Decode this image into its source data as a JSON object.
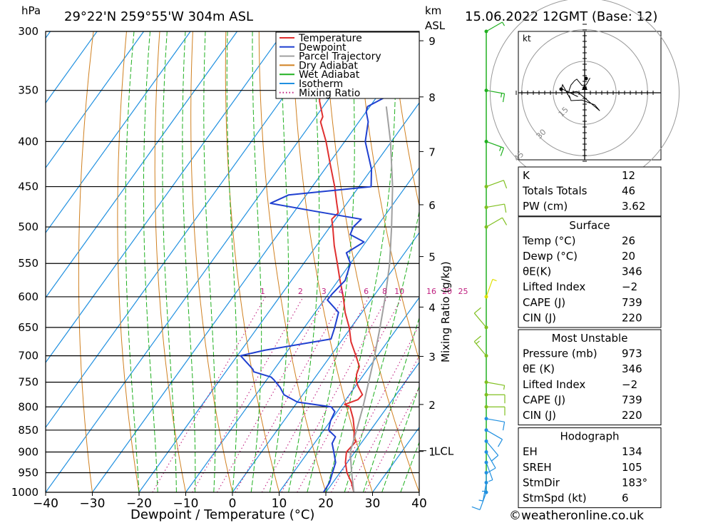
{
  "header": {
    "left_unit": "hPa",
    "location": "29°22'N  259°55'W  304m  ASL",
    "km_label": "km",
    "asl_label": "ASL",
    "datetime": "15.06.2022  12GMT  (Base: 12)"
  },
  "footer": {
    "xlabel": "Dewpoint / Temperature (°C)",
    "credit": "©weatheronline.co.uk"
  },
  "legend": [
    {
      "label": "Temperature",
      "color": "#e03030",
      "style": "solid"
    },
    {
      "label": "Dewpoint",
      "color": "#2040d0",
      "style": "solid"
    },
    {
      "label": "Parcel Trajectory",
      "color": "#a0a0a0",
      "style": "solid"
    },
    {
      "label": "Dry Adiabat",
      "color": "#d08020",
      "style": "solid"
    },
    {
      "label": "Wet Adiabat",
      "color": "#20b020",
      "style": "solid"
    },
    {
      "label": "Isotherm",
      "color": "#2090e0",
      "style": "solid"
    },
    {
      "label": "Mixing Ratio",
      "color": "#c02080",
      "style": "dotted"
    }
  ],
  "chart_data": {
    "type": "line",
    "title": "Skew-T log-P sounding",
    "xlabel": "Dewpoint / Temperature (°C)",
    "ylabel": "hPa",
    "xlim": [
      -40,
      40
    ],
    "ylim": [
      1000,
      300
    ],
    "x_ticks": [
      -40,
      -30,
      -20,
      -10,
      0,
      10,
      20,
      30,
      40
    ],
    "x_tick_labels": [
      "−40",
      "−30",
      "−20",
      "−10",
      "0",
      "10",
      "20",
      "30",
      "40"
    ],
    "pressure_levels": [
      300,
      350,
      400,
      450,
      500,
      550,
      600,
      650,
      700,
      750,
      800,
      850,
      900,
      950,
      1000
    ],
    "km_ticks": [
      {
        "km": 1,
        "label": "1"
      },
      {
        "km": 2,
        "label": "2"
      },
      {
        "km": 3,
        "label": "3"
      },
      {
        "km": 4,
        "label": "4"
      },
      {
        "km": 5,
        "label": "5"
      },
      {
        "km": 6,
        "label": "6"
      },
      {
        "km": 7,
        "label": "7"
      },
      {
        "km": 8,
        "label": "8"
      },
      {
        "km": 9,
        "label": "9"
      }
    ],
    "lcl_label": "LCL",
    "lcl_pressure": 897,
    "mixing_ratio_axis_label": "Mixing Ratio (g/kg)",
    "mixing_ratios": [
      1,
      2,
      3,
      4,
      6,
      8,
      10,
      16,
      20,
      25
    ],
    "mixing_ratio_labels": [
      "1",
      "2",
      "3",
      "4",
      "6",
      "8",
      "10",
      "16",
      "20",
      "25"
    ],
    "series": [
      {
        "name": "Temperature",
        "color": "#e03030",
        "points": [
          [
            1000,
            26
          ],
          [
            975,
            24
          ],
          [
            950,
            21.5
          ],
          [
            925,
            19.6
          ],
          [
            900,
            18.2
          ],
          [
            875,
            18.6
          ],
          [
            870,
            17.8
          ],
          [
            850,
            16.5
          ],
          [
            825,
            14.5
          ],
          [
            800,
            12.0
          ],
          [
            795,
            10.5
          ],
          [
            785,
            12.6
          ],
          [
            775,
            12.8
          ],
          [
            760,
            10.8
          ],
          [
            750,
            9.6
          ],
          [
            735,
            8.4
          ],
          [
            720,
            7.8
          ],
          [
            700,
            5.4
          ],
          [
            675,
            2.2
          ],
          [
            650,
            -0.4
          ],
          [
            625,
            -3.6
          ],
          [
            600,
            -6.4
          ],
          [
            575,
            -9.6
          ],
          [
            550,
            -12.8
          ],
          [
            525,
            -16.2
          ],
          [
            500,
            -19.4
          ],
          [
            490,
            -20.8
          ],
          [
            482,
            -20.4
          ],
          [
            470,
            -22.2
          ],
          [
            450,
            -25.2
          ],
          [
            425,
            -29.5
          ],
          [
            400,
            -34.0
          ],
          [
            380,
            -38.2
          ],
          [
            375,
            -38.5
          ],
          [
            360,
            -41.6
          ],
          [
            350,
            -43.2
          ],
          [
            325,
            -46.8
          ],
          [
            300,
            -50.4
          ]
        ]
      },
      {
        "name": "Dewpoint",
        "color": "#2040d0",
        "points": [
          [
            1000,
            19.5
          ],
          [
            975,
            19.3
          ],
          [
            950,
            18.4
          ],
          [
            925,
            17.5
          ],
          [
            900,
            15.5
          ],
          [
            880,
            13.8
          ],
          [
            865,
            13.5
          ],
          [
            850,
            11.0
          ],
          [
            830,
            10.0
          ],
          [
            810,
            9.5
          ],
          [
            800,
            8.0
          ],
          [
            790,
            0.0
          ],
          [
            775,
            -4.0
          ],
          [
            760,
            -6.0
          ],
          [
            745,
            -8.5
          ],
          [
            740,
            -9.5
          ],
          [
            730,
            -14.0
          ],
          [
            725,
            -14.6
          ],
          [
            700,
            -19.3
          ],
          [
            690,
            -15.0
          ],
          [
            670,
            -2.5
          ],
          [
            650,
            -3.5
          ],
          [
            625,
            -5.0
          ],
          [
            605,
            -9.3
          ],
          [
            595,
            -9.2
          ],
          [
            575,
            -8.5
          ],
          [
            550,
            -10.0
          ],
          [
            535,
            -12.5
          ],
          [
            520,
            -10.4
          ],
          [
            510,
            -14.5
          ],
          [
            500,
            -15.0
          ],
          [
            490,
            -14.5
          ],
          [
            480,
            -25.5
          ],
          [
            470,
            -36.4
          ],
          [
            460,
            -33.8
          ],
          [
            450,
            -17.4
          ],
          [
            430,
            -20.0
          ],
          [
            400,
            -25.6
          ],
          [
            380,
            -28.0
          ],
          [
            370,
            -30.0
          ],
          [
            365,
            -30.5
          ],
          [
            355,
            -27.8
          ],
          [
            345,
            -29.8
          ],
          [
            330,
            -31.0
          ],
          [
            320,
            -33.6
          ],
          [
            310,
            -36.5
          ],
          [
            300,
            -39.6
          ]
        ]
      },
      {
        "name": "Parcel Trajectory",
        "color": "#a0a0a0",
        "points": [
          [
            1000,
            26
          ],
          [
            950,
            22.5
          ],
          [
            900,
            19.0
          ],
          [
            850,
            17.0
          ],
          [
            800,
            14.8
          ],
          [
            750,
            12.2
          ],
          [
            700,
            9.4
          ],
          [
            650,
            6.2
          ],
          [
            600,
            2.6
          ],
          [
            550,
            -1.6
          ],
          [
            500,
            -6.8
          ],
          [
            450,
            -12.8
          ],
          [
            400,
            -20.2
          ],
          [
            365,
            -26.5
          ]
        ]
      }
    ],
    "wind_barbs_kt": [
      {
        "pressure": 1000,
        "dir": 200,
        "speed": 10
      },
      {
        "pressure": 975,
        "dir": 190,
        "speed": 5
      },
      {
        "pressure": 950,
        "dir": 180,
        "speed": 5
      },
      {
        "pressure": 925,
        "dir": 160,
        "speed": 5
      },
      {
        "pressure": 900,
        "dir": 150,
        "speed": 10
      },
      {
        "pressure": 875,
        "dir": 140,
        "speed": 10
      },
      {
        "pressure": 850,
        "dir": 120,
        "speed": 10
      },
      {
        "pressure": 825,
        "dir": 100,
        "speed": 10
      },
      {
        "pressure": 800,
        "dir": 90,
        "speed": 10
      },
      {
        "pressure": 775,
        "dir": 90,
        "speed": 10
      },
      {
        "pressure": 750,
        "dir": 100,
        "speed": 5
      },
      {
        "pressure": 700,
        "dir": 320,
        "speed": 15
      },
      {
        "pressure": 650,
        "dir": 320,
        "speed": 10
      },
      {
        "pressure": 600,
        "dir": 20,
        "speed": 5
      },
      {
        "pressure": 500,
        "dir": 60,
        "speed": 10
      },
      {
        "pressure": 475,
        "dir": 80,
        "speed": 10
      },
      {
        "pressure": 450,
        "dir": 70,
        "speed": 10
      },
      {
        "pressure": 400,
        "dir": 110,
        "speed": 15
      },
      {
        "pressure": 350,
        "dir": 100,
        "speed": 15
      },
      {
        "pressure": 300,
        "dir": 60,
        "speed": 5
      }
    ]
  },
  "hodograph": {
    "unit_label": "kt",
    "rings": [
      15,
      30,
      45
    ],
    "ring_labels": [
      "15",
      "30",
      "45"
    ]
  },
  "stats": {
    "block1": [
      {
        "label": "K",
        "value": "12"
      },
      {
        "label": "Totals Totals",
        "value": "46"
      },
      {
        "label": "PW (cm)",
        "value": "3.62"
      }
    ],
    "surface": {
      "title": "Surface",
      "rows": [
        {
          "label": "Temp (°C)",
          "value": "26"
        },
        {
          "label": "Dewp (°C)",
          "value": "20"
        },
        {
          "label": "θE(K)",
          "value": "346"
        },
        {
          "label": "Lifted Index",
          "value": "−2"
        },
        {
          "label": "CAPE (J)",
          "value": "739"
        },
        {
          "label": "CIN (J)",
          "value": "220"
        }
      ]
    },
    "most_unstable": {
      "title": "Most Unstable",
      "rows": [
        {
          "label": "Pressure (mb)",
          "value": "973"
        },
        {
          "label": "θE (K)",
          "value": "346"
        },
        {
          "label": "Lifted Index",
          "value": "−2"
        },
        {
          "label": "CAPE (J)",
          "value": "739"
        },
        {
          "label": "CIN (J)",
          "value": "220"
        }
      ]
    },
    "hodograph_block": {
      "title": "Hodograph",
      "rows": [
        {
          "label": "EH",
          "value": "134"
        },
        {
          "label": "SREH",
          "value": "105"
        },
        {
          "label": "StmDir",
          "value": "183°"
        },
        {
          "label": "StmSpd (kt)",
          "value": "6"
        }
      ]
    }
  }
}
